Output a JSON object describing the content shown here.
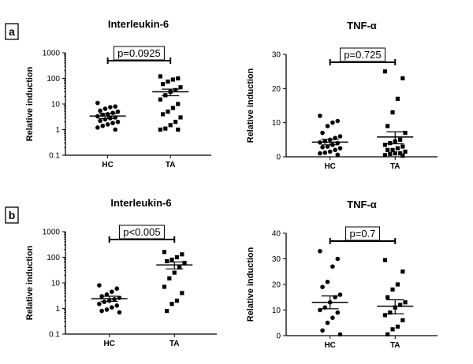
{
  "panel_labels": [
    "a",
    "b"
  ],
  "chart_data": [
    {
      "type": "scatter",
      "title": "Interleukin-6",
      "ylabel": "Relative induction",
      "categories": [
        "HC",
        "TA"
      ],
      "yscale": "log",
      "ylim": [
        0.1,
        1000
      ],
      "yticks": [
        0.1,
        1,
        10,
        100,
        1000
      ],
      "ytick_labels": [
        "0.1",
        "1",
        "10",
        "100",
        "1000"
      ],
      "annotation": "p=0.0925",
      "grid": false,
      "legend": "none",
      "series": [
        {
          "marker": "circle",
          "values": [
            11,
            8,
            7.5,
            6.5,
            5.5,
            5,
            4.5,
            4,
            3.8,
            3.3,
            3,
            2.8,
            2.5,
            2.2,
            2,
            1.8,
            1.6,
            1.4,
            1.2,
            1
          ],
          "mean": 3.4,
          "sem_low": 2.7,
          "sem_high": 4.2
        },
        {
          "marker": "square",
          "values": [
            120,
            100,
            90,
            75,
            60,
            45,
            35,
            30,
            22,
            15,
            10,
            7,
            5,
            4,
            3,
            2,
            1.5,
            1.1,
            1,
            1
          ],
          "mean": 30,
          "sem_low": 21,
          "sem_high": 38
        }
      ]
    },
    {
      "type": "scatter",
      "title": "TNF-α",
      "ylabel": "Relative induction",
      "categories": [
        "HC",
        "TA"
      ],
      "yscale": "linear",
      "ylim": [
        0,
        30
      ],
      "yticks": [
        0,
        10,
        20,
        30
      ],
      "ytick_labels": [
        "0",
        "10",
        "20",
        "30"
      ],
      "annotation": "p=0.725",
      "grid": false,
      "legend": "none",
      "series": [
        {
          "marker": "circle",
          "values": [
            12,
            10.5,
            10,
            9,
            7,
            6,
            5.5,
            5,
            4.5,
            4.2,
            4,
            3.5,
            3,
            2.8,
            2.5,
            2,
            1.5,
            1.2,
            1,
            0.6
          ],
          "mean": 4.3,
          "sem_low": 3.5,
          "sem_high": 5.1
        },
        {
          "marker": "square",
          "values": [
            25,
            23,
            17,
            13,
            9,
            7,
            5,
            4.5,
            4,
            3.5,
            3,
            2.5,
            2,
            2,
            1.5,
            1,
            1,
            0.8,
            0.5,
            0.3
          ],
          "mean": 5.8,
          "sem_low": 3.8,
          "sem_high": 7.3
        }
      ]
    },
    {
      "type": "scatter",
      "title": "Interleukin-6",
      "ylabel": "Relative induction",
      "categories": [
        "HC",
        "TA"
      ],
      "yscale": "log",
      "ylim": [
        0.1,
        1000
      ],
      "yticks": [
        0.1,
        1,
        10,
        100,
        1000
      ],
      "ytick_labels": [
        "0.1",
        "1",
        "10",
        "100",
        "1000"
      ],
      "annotation": "p<0.005",
      "grid": false,
      "legend": "none",
      "series": [
        {
          "marker": "circle",
          "values": [
            8,
            6,
            4.5,
            3.5,
            3,
            2.6,
            2.3,
            2,
            1.8,
            1.5,
            1.3,
            1.1,
            0.9,
            0.8,
            0.7
          ],
          "mean": 2.4,
          "sem_low": 1.9,
          "sem_high": 3
        },
        {
          "marker": "square",
          "values": [
            160,
            130,
            100,
            80,
            70,
            60,
            40,
            25,
            15,
            7,
            4,
            2,
            1.5,
            0.8
          ],
          "mean": 50,
          "sem_low": 35,
          "sem_high": 65
        }
      ]
    },
    {
      "type": "scatter",
      "title": "TNF-α",
      "ylabel": "Relative induction",
      "categories": [
        "HC",
        "TA"
      ],
      "yscale": "linear",
      "ylim": [
        0,
        40
      ],
      "yticks": [
        0,
        10,
        20,
        30,
        40
      ],
      "ytick_labels": [
        "0",
        "10",
        "20",
        "30",
        "40"
      ],
      "annotation": "p=0.7",
      "grid": false,
      "legend": "none",
      "series": [
        {
          "marker": "circle",
          "values": [
            33,
            30,
            27,
            21,
            19,
            16,
            15,
            13,
            11,
            10,
            9,
            7,
            5,
            2,
            0.5
          ],
          "mean": 13,
          "sem_low": 10.5,
          "sem_high": 15.5
        },
        {
          "marker": "square",
          "values": [
            29.5,
            25,
            20,
            18,
            15,
            13,
            12,
            11,
            9,
            8,
            6,
            3.5,
            2.5,
            0.5
          ],
          "mean": 11.5,
          "sem_low": 8.5,
          "sem_high": 14
        }
      ]
    }
  ]
}
